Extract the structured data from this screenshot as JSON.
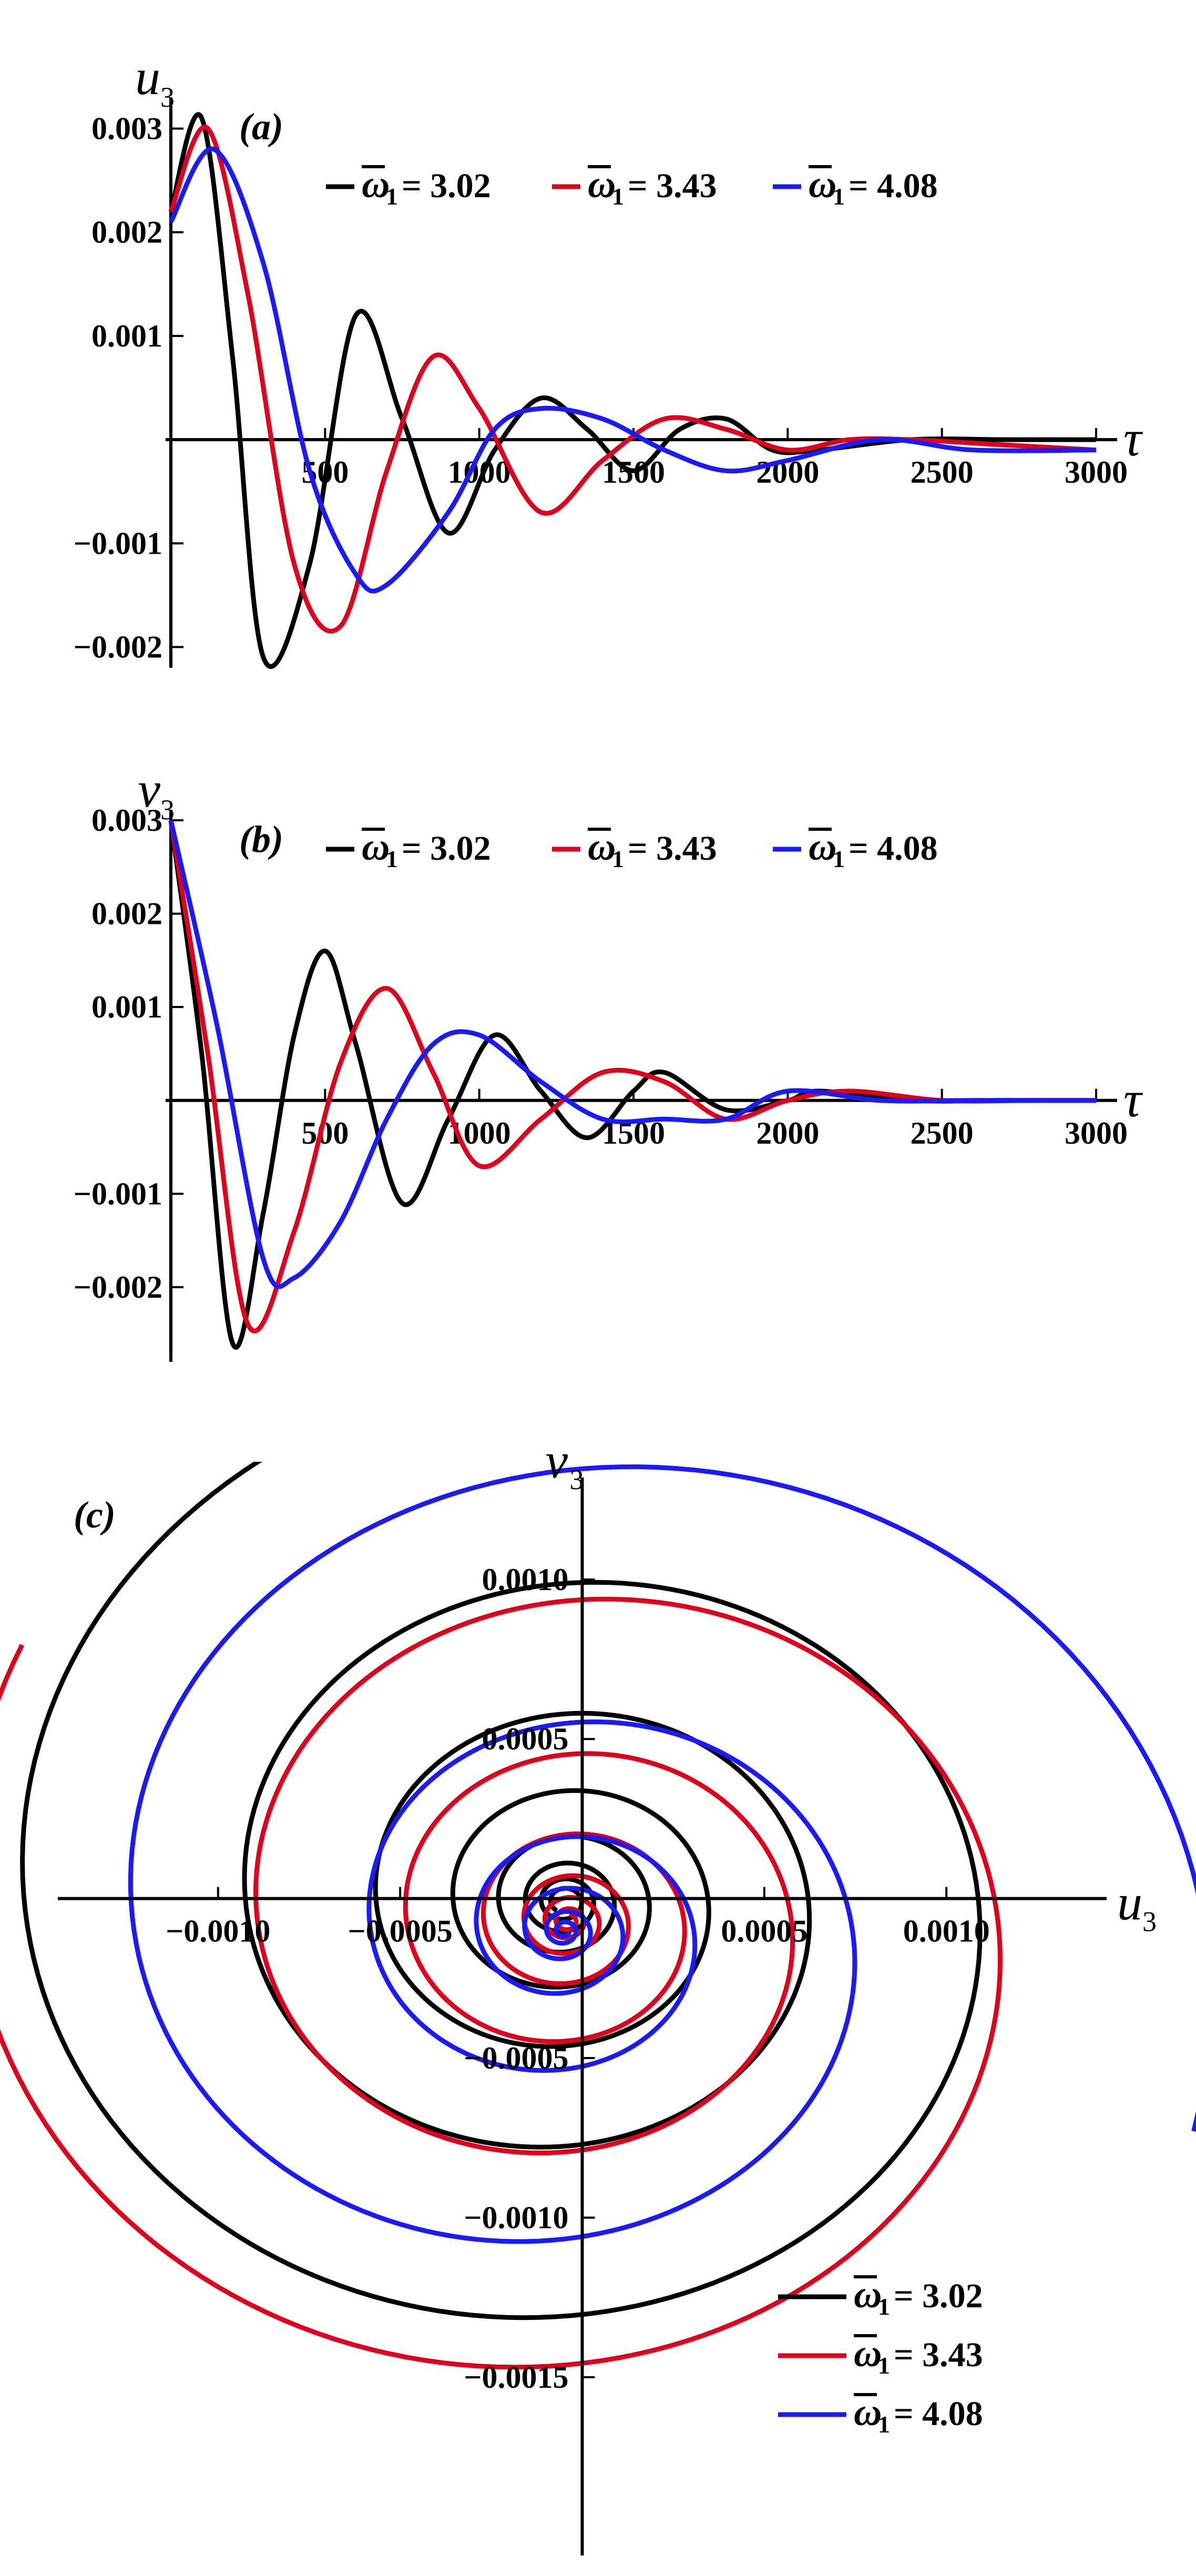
{
  "chart_data": [
    {
      "type": "line",
      "panel_label": "(a)",
      "ylabel": "u",
      "ylabel_sub": "3",
      "xlabel": "τ",
      "xlim": [
        0,
        3000
      ],
      "ylim": [
        -0.0022,
        0.0032
      ],
      "xticks": [
        "500",
        "1000",
        "1500",
        "2000",
        "2500",
        "3000"
      ],
      "yticks": [
        "0.003",
        "0.002",
        "0.001",
        "−0.001",
        "−0.002"
      ],
      "legend_placement": "top",
      "series": [
        {
          "name": "ω̄₁ = 3.02",
          "legend_value": "= 3.02",
          "color": "#000000",
          "x": [
            0,
            100,
            200,
            300,
            450,
            600,
            750,
            900,
            1050,
            1200,
            1350,
            1500,
            1650,
            1800,
            1950,
            2100,
            2400,
            2700,
            3000
          ],
          "y": [
            0.0022,
            0.0031,
            0.0008,
            -0.0021,
            -0.0012,
            0.0012,
            0.0002,
            -0.0009,
            -0.0001,
            0.0004,
            0.0001,
            -0.0003,
            0.0001,
            0.0002,
            -0.0001,
            -0.0001,
            0.0,
            0.0,
            0.0
          ]
        },
        {
          "name": "ω̄₁ = 3.43",
          "legend_value": "= 3.43",
          "color": "#e0001b",
          "x": [
            0,
            120,
            250,
            400,
            550,
            700,
            850,
            1000,
            1200,
            1400,
            1600,
            1800,
            2000,
            2200,
            2400,
            2700,
            3000
          ],
          "y": [
            0.0022,
            0.003,
            0.0014,
            -0.0012,
            -0.0018,
            -0.0003,
            0.0008,
            0.0003,
            -0.0007,
            -0.0002,
            0.0002,
            0.0001,
            -0.0001,
            0.0,
            0.0,
            -5e-05,
            -0.0001
          ]
        },
        {
          "name": "ω̄₁ = 4.08",
          "legend_value": "= 4.08",
          "color": "#1a1aff",
          "x": [
            0,
            140,
            300,
            450,
            600,
            700,
            900,
            1050,
            1200,
            1400,
            1600,
            1800,
            2000,
            2300,
            2600,
            3000
          ],
          "y": [
            0.0021,
            0.0028,
            0.0017,
            -0.0003,
            -0.0013,
            -0.0014,
            -0.0007,
            0.0001,
            0.0003,
            0.0002,
            -0.0001,
            -0.0003,
            -0.0002,
            0.0,
            -0.0001,
            -0.0001
          ]
        }
      ]
    },
    {
      "type": "line",
      "panel_label": "(b)",
      "ylabel": "v",
      "ylabel_sub": "3",
      "xlabel": "τ",
      "xlim": [
        0,
        3000
      ],
      "ylim": [
        -0.0028,
        0.003
      ],
      "xticks": [
        "500",
        "1000",
        "1500",
        "2000",
        "2500",
        "3000"
      ],
      "yticks": [
        "0.003",
        "0.002",
        "0.001",
        "−0.001",
        "−0.002"
      ],
      "legend_placement": "top",
      "series": [
        {
          "name": "ω̄₁ = 3.02",
          "legend_value": "= 3.02",
          "color": "#000000",
          "x": [
            0,
            100,
            200,
            300,
            400,
            500,
            600,
            750,
            900,
            1050,
            1200,
            1350,
            1500,
            1600,
            1800,
            2000,
            2100,
            2400,
            2700,
            3000
          ],
          "y": [
            0.003,
            0.0005,
            -0.0026,
            -0.0012,
            0.0007,
            0.0016,
            0.0006,
            -0.0011,
            -0.0002,
            0.0007,
            0.0001,
            -0.0004,
            0.0001,
            0.0003,
            -0.0001,
            0.0,
            0.0001,
            0.0,
            0.0,
            0.0
          ]
        },
        {
          "name": "ω̄₁ = 3.43",
          "legend_value": "= 3.43",
          "color": "#e0001b",
          "x": [
            0,
            120,
            250,
            400,
            550,
            700,
            850,
            1000,
            1200,
            1400,
            1600,
            1800,
            2000,
            2200,
            2500,
            2800,
            3000
          ],
          "y": [
            0.003,
            0.0005,
            -0.0024,
            -0.0014,
            0.0004,
            0.0012,
            0.0003,
            -0.0007,
            -0.0002,
            0.0003,
            0.0002,
            -0.0002,
            0.0,
            0.0001,
            0.0,
            0.0,
            0.0
          ]
        },
        {
          "name": "ω̄₁ = 4.08",
          "legend_value": "= 4.08",
          "color": "#1a1aff",
          "x": [
            0,
            150,
            300,
            400,
            550,
            700,
            850,
            1000,
            1200,
            1400,
            1600,
            1800,
            2000,
            2300,
            2600,
            3000
          ],
          "y": [
            0.003,
            0.0008,
            -0.0017,
            -0.0019,
            -0.0013,
            -0.0002,
            0.0006,
            0.0007,
            0.0002,
            -0.0002,
            -0.0002,
            -0.0002,
            0.0001,
            0.0,
            0.0,
            0.0
          ]
        }
      ]
    },
    {
      "type": "line",
      "panel_label": "(c)",
      "xlabel": "u",
      "xlabel_sub": "3",
      "ylabel": "v",
      "ylabel_sub": "3",
      "xlim": [
        -0.00144,
        0.00144
      ],
      "ylim": [
        -0.00196,
        0.00127
      ],
      "xticks": [
        "−0.0010",
        "−0.0005",
        "0.0005",
        "0.0010"
      ],
      "yticks": [
        "0.0010",
        "0.0005",
        "−0.0005",
        "−0.0010",
        "−0.0015"
      ],
      "legend_placement": "bottom-right",
      "series": [
        {
          "name": "ω̄₁ = 3.02",
          "legend_value": "= 3.02",
          "color": "#000000",
          "spiral": {
            "center_x": -5e-05,
            "center_y": -1e-05,
            "a0": 0.00178,
            "decay_per_turn": 0.59,
            "theta_start": 55,
            "turns": 7.5
          }
        },
        {
          "name": "ω̄₁ = 3.43",
          "legend_value": "= 3.43",
          "color": "#e0001b",
          "spiral": {
            "center_x": -4e-05,
            "center_y": -7e-05,
            "a0": 0.00173,
            "decay_per_turn": 0.52,
            "theta_start": 150,
            "turns": 6.8
          }
        },
        {
          "name": "ω̄₁ = 4.08",
          "legend_value": "= 4.08",
          "color": "#1a1aff",
          "spiral": {
            "center_x": -5e-05,
            "center_y": -0.0001,
            "a0": 0.00184,
            "decay_per_turn": 0.45,
            "theta_start": 340,
            "turns": 6.0
          }
        }
      ]
    }
  ]
}
